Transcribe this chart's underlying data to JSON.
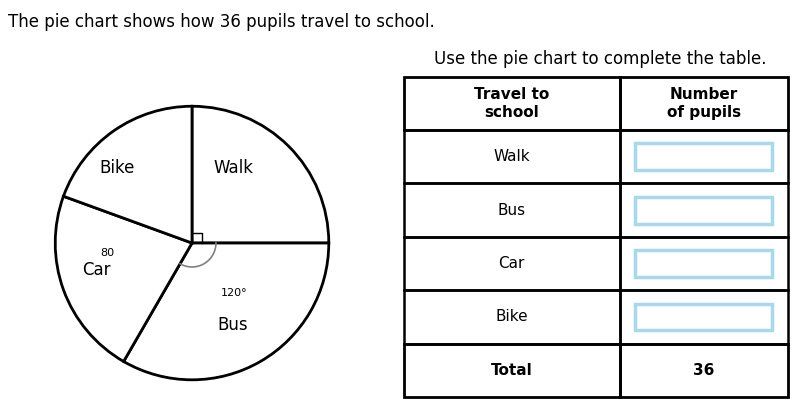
{
  "title_text": "The pie chart shows how 36 pupils travel to school.",
  "table_title": "Use the pie chart to complete the table.",
  "pie_labels": [
    "Walk",
    "Bus",
    "Car",
    "Bike"
  ],
  "pie_angles": [
    90,
    120,
    80,
    70
  ],
  "pie_colors": [
    "#ffffff",
    "#ffffff",
    "#ffffff",
    "#ffffff"
  ],
  "pie_edgecolor": "#000000",
  "pie_linewidth": 2.0,
  "angle_label_bus": "120°",
  "angle_label_car": "80",
  "table_rows": [
    "Walk",
    "Bus",
    "Car",
    "Bike"
  ],
  "table_col1_header": "Travel to\nschool",
  "table_col2_header": "Number\nof pupils",
  "table_total_label": "Total",
  "table_total_value": "36",
  "answer_box_color": "#a8d8ea",
  "background_color": "#ffffff",
  "font_size_title": 12,
  "font_size_table": 11,
  "font_size_pie_labels": 12
}
